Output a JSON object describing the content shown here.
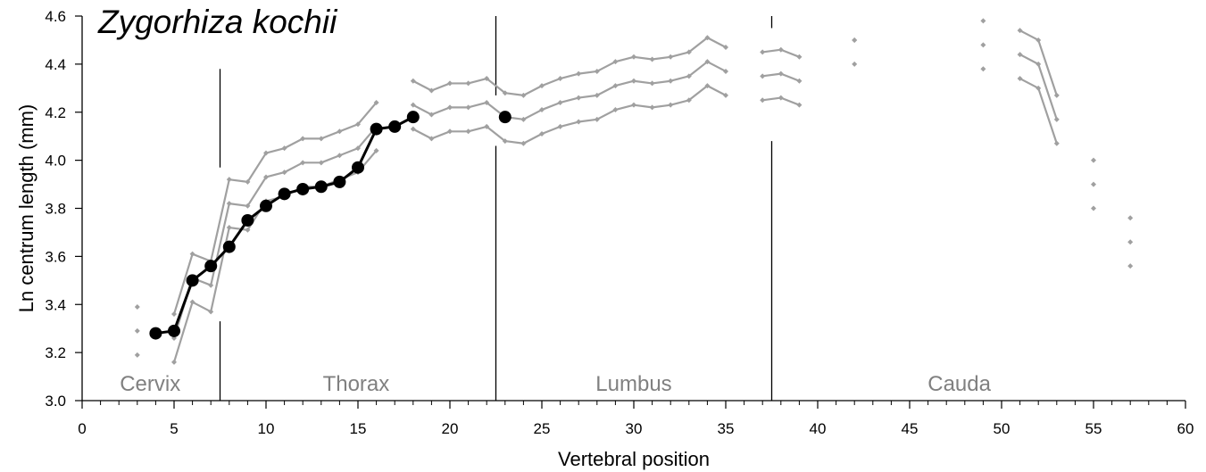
{
  "chart_data": {
    "type": "line",
    "title": "Zygorhiza kochii",
    "xlabel": "Vertebral position",
    "ylabel": "Ln centrum length (mm)",
    "xlim": [
      0,
      60
    ],
    "ylim": [
      3.0,
      4.6
    ],
    "xticks": [
      0,
      5,
      10,
      15,
      20,
      25,
      30,
      35,
      40,
      45,
      50,
      55,
      60
    ],
    "x_minor_step": 1,
    "yticks": [
      3.0,
      3.2,
      3.4,
      3.6,
      3.8,
      4.0,
      4.2,
      4.4,
      4.6
    ],
    "grid": false,
    "legend": "none",
    "regions": [
      {
        "label": "Cervix",
        "x_center": 3.7
      },
      {
        "label": "Thorax",
        "x_center": 14.9
      },
      {
        "label": "Lumbus",
        "x_center": 30
      },
      {
        "label": "Cauda",
        "x_center": 47.7
      }
    ],
    "boundaries": [
      {
        "x": 7.5,
        "segments": [
          [
            3.0,
            3.33
          ],
          [
            3.97,
            4.38
          ]
        ]
      },
      {
        "x": 22.5,
        "segments": [
          [
            3.0,
            4.06
          ],
          [
            4.27,
            4.6
          ]
        ]
      },
      {
        "x": 37.5,
        "segments": [
          [
            3.0,
            4.08
          ],
          [
            4.55,
            4.6
          ]
        ]
      }
    ],
    "colors": {
      "reference": "#a0a0a0",
      "specimen": "#000000",
      "boundary": "#000000"
    },
    "series": [
      {
        "role": "reference-upper",
        "segments": [
          [
            [
              3,
              3.39
            ]
          ],
          [
            [
              5,
              3.36
            ],
            [
              6,
              3.61
            ],
            [
              7,
              3.58
            ],
            [
              8,
              3.92
            ],
            [
              9,
              3.91
            ],
            [
              10,
              4.03
            ],
            [
              11,
              4.05
            ],
            [
              12,
              4.09
            ],
            [
              13,
              4.09
            ],
            [
              14,
              4.12
            ],
            [
              15,
              4.15
            ],
            [
              16,
              4.24
            ]
          ],
          [
            [
              18,
              4.33
            ],
            [
              19,
              4.29
            ],
            [
              20,
              4.32
            ],
            [
              21,
              4.32
            ],
            [
              22,
              4.34
            ],
            [
              23,
              4.28
            ],
            [
              24,
              4.27
            ],
            [
              25,
              4.31
            ],
            [
              26,
              4.34
            ],
            [
              27,
              4.36
            ],
            [
              28,
              4.37
            ],
            [
              29,
              4.41
            ],
            [
              30,
              4.43
            ],
            [
              31,
              4.42
            ],
            [
              32,
              4.43
            ],
            [
              33,
              4.45
            ],
            [
              34,
              4.51
            ],
            [
              35,
              4.47
            ]
          ],
          [
            [
              37,
              4.45
            ],
            [
              38,
              4.46
            ],
            [
              39,
              4.43
            ]
          ],
          [
            [
              42,
              4.5
            ]
          ],
          [
            [
              49,
              4.58
            ]
          ],
          [
            [
              51,
              4.54
            ],
            [
              52,
              4.5
            ],
            [
              53,
              4.27
            ]
          ],
          [
            [
              55,
              4.0
            ]
          ],
          [
            [
              57,
              3.76
            ]
          ]
        ]
      },
      {
        "role": "reference-middle",
        "segments": [
          [
            [
              3,
              3.29
            ]
          ],
          [
            [
              5,
              3.26
            ],
            [
              6,
              3.51
            ],
            [
              7,
              3.48
            ],
            [
              8,
              3.82
            ],
            [
              9,
              3.81
            ],
            [
              10,
              3.93
            ],
            [
              11,
              3.95
            ],
            [
              12,
              3.99
            ],
            [
              13,
              3.99
            ],
            [
              14,
              4.02
            ],
            [
              15,
              4.05
            ],
            [
              16,
              4.14
            ]
          ],
          [
            [
              18,
              4.23
            ],
            [
              19,
              4.19
            ],
            [
              20,
              4.22
            ],
            [
              21,
              4.22
            ],
            [
              22,
              4.24
            ],
            [
              23,
              4.18
            ],
            [
              24,
              4.17
            ],
            [
              25,
              4.21
            ],
            [
              26,
              4.24
            ],
            [
              27,
              4.26
            ],
            [
              28,
              4.27
            ],
            [
              29,
              4.31
            ],
            [
              30,
              4.33
            ],
            [
              31,
              4.32
            ],
            [
              32,
              4.33
            ],
            [
              33,
              4.35
            ],
            [
              34,
              4.41
            ],
            [
              35,
              4.37
            ]
          ],
          [
            [
              37,
              4.35
            ],
            [
              38,
              4.36
            ],
            [
              39,
              4.33
            ]
          ],
          [
            [
              42,
              4.5
            ]
          ],
          [
            [
              49,
              4.48
            ]
          ],
          [
            [
              51,
              4.44
            ],
            [
              52,
              4.4
            ],
            [
              53,
              4.17
            ]
          ],
          [
            [
              55,
              3.9
            ]
          ],
          [
            [
              57,
              3.66
            ]
          ]
        ]
      },
      {
        "role": "reference-lower",
        "segments": [
          [
            [
              3,
              3.19
            ]
          ],
          [
            [
              5,
              3.16
            ],
            [
              6,
              3.41
            ],
            [
              7,
              3.37
            ],
            [
              8,
              3.72
            ],
            [
              9,
              3.71
            ],
            [
              10,
              3.83
            ],
            [
              11,
              3.85
            ],
            [
              12,
              3.89
            ],
            [
              13,
              3.89
            ],
            [
              14,
              3.92
            ],
            [
              15,
              3.95
            ],
            [
              16,
              4.04
            ]
          ],
          [
            [
              18,
              4.13
            ],
            [
              19,
              4.09
            ],
            [
              20,
              4.12
            ],
            [
              21,
              4.12
            ],
            [
              22,
              4.14
            ],
            [
              23,
              4.08
            ],
            [
              24,
              4.07
            ],
            [
              25,
              4.11
            ],
            [
              26,
              4.14
            ],
            [
              27,
              4.16
            ],
            [
              28,
              4.17
            ],
            [
              29,
              4.21
            ],
            [
              30,
              4.23
            ],
            [
              31,
              4.22
            ],
            [
              32,
              4.23
            ],
            [
              33,
              4.25
            ],
            [
              34,
              4.31
            ],
            [
              35,
              4.27
            ]
          ],
          [
            [
              37,
              4.25
            ],
            [
              38,
              4.26
            ],
            [
              39,
              4.23
            ]
          ],
          [
            [
              42,
              4.4
            ]
          ],
          [
            [
              49,
              4.38
            ]
          ],
          [
            [
              51,
              4.34
            ],
            [
              52,
              4.3
            ],
            [
              53,
              4.07
            ]
          ],
          [
            [
              55,
              3.8
            ]
          ],
          [
            [
              57,
              3.56
            ]
          ]
        ]
      },
      {
        "role": "specimen",
        "segments": [
          [
            [
              4,
              3.28
            ],
            [
              5,
              3.29
            ],
            [
              6,
              3.5
            ],
            [
              7,
              3.56
            ],
            [
              8,
              3.64
            ],
            [
              9,
              3.75
            ],
            [
              10,
              3.81
            ],
            [
              11,
              3.86
            ],
            [
              12,
              3.88
            ],
            [
              13,
              3.89
            ],
            [
              14,
              3.91
            ],
            [
              15,
              3.97
            ],
            [
              16,
              4.13
            ],
            [
              17,
              4.14
            ],
            [
              18,
              4.18
            ]
          ],
          [
            [
              23,
              4.18
            ]
          ]
        ]
      }
    ]
  }
}
